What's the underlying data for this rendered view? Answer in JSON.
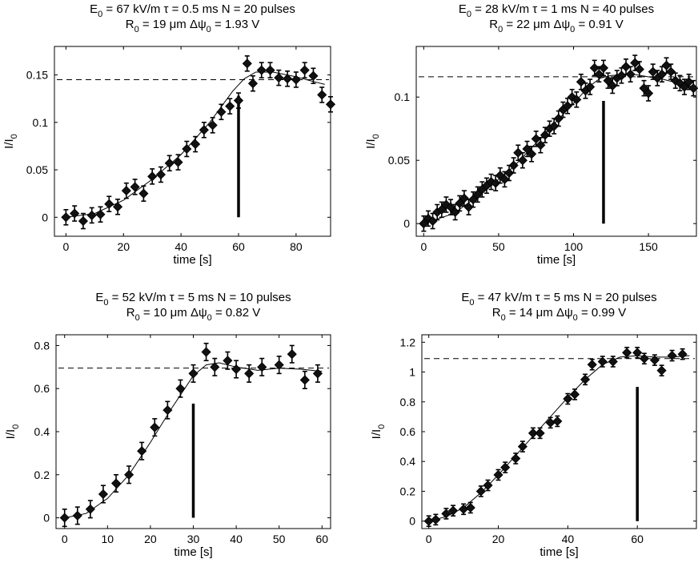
{
  "chart_data": [
    {
      "type": "scatter",
      "title_line1": [
        "E",
        "0",
        " = 67 kV/m    τ = 0.5 ms    N = 20 pulses"
      ],
      "title_line2": [
        "R",
        "0",
        " = 19 μm    Δψ",
        "0",
        " = 1.93 V"
      ],
      "xlabel": "time [s]",
      "ylabel": [
        "I/I",
        "0"
      ],
      "xlim": [
        -4,
        92
      ],
      "ylim": [
        -0.02,
        0.18
      ],
      "xticks": [
        0,
        20,
        40,
        60,
        80
      ],
      "xticklabels": [
        "0",
        "20",
        "40",
        "60",
        "80"
      ],
      "yticks": [
        0,
        0.05,
        0.1,
        0.15
      ],
      "yticklabels": [
        "0",
        "0.05",
        "0.1",
        "0.15"
      ],
      "plateau": 0.145,
      "pulse_marker": {
        "x": 60,
        "y_bottom": 0,
        "y_top": 0.128
      },
      "err": 0.008,
      "points": [
        [
          0,
          0
        ],
        [
          3,
          0.004
        ],
        [
          6,
          -0.004
        ],
        [
          9,
          0.002
        ],
        [
          12,
          0.003
        ],
        [
          15,
          0.014
        ],
        [
          18,
          0.011
        ],
        [
          21,
          0.028
        ],
        [
          24,
          0.032
        ],
        [
          27,
          0.025
        ],
        [
          30,
          0.043
        ],
        [
          33,
          0.045
        ],
        [
          36,
          0.057
        ],
        [
          39,
          0.058
        ],
        [
          42,
          0.072
        ],
        [
          45,
          0.077
        ],
        [
          48,
          0.092
        ],
        [
          51,
          0.097
        ],
        [
          54,
          0.111
        ],
        [
          57,
          0.117
        ],
        [
          60,
          0.123
        ],
        [
          63,
          0.162
        ],
        [
          65,
          0.141
        ],
        [
          68,
          0.155
        ],
        [
          71,
          0.155
        ],
        [
          74,
          0.147
        ],
        [
          77,
          0.146
        ],
        [
          80,
          0.145
        ],
        [
          83,
          0.155
        ],
        [
          86,
          0.149
        ],
        [
          89,
          0.129
        ],
        [
          92,
          0.119
        ]
      ],
      "fit": [
        [
          0,
          0
        ],
        [
          10,
          0.004
        ],
        [
          20,
          0.018
        ],
        [
          30,
          0.04
        ],
        [
          40,
          0.066
        ],
        [
          50,
          0.1
        ],
        [
          58,
          0.133
        ],
        [
          62,
          0.146
        ],
        [
          66,
          0.153
        ],
        [
          72,
          0.153
        ],
        [
          80,
          0.148
        ],
        [
          86,
          0.143
        ],
        [
          90,
          0.14
        ]
      ]
    },
    {
      "type": "scatter",
      "title_line1": [
        "E",
        "0",
        " = 28 kV/m    τ = 1 ms    N = 40 pulses"
      ],
      "title_line2": [
        "R",
        "0",
        " = 22 μm    Δψ",
        "0",
        " = 0.91 V"
      ],
      "xlabel": "time [s]",
      "ylabel": [
        "I/I",
        "0"
      ],
      "xlim": [
        -5,
        182
      ],
      "ylim": [
        -0.01,
        0.14
      ],
      "xticks": [
        0,
        50,
        100,
        150
      ],
      "xticklabels": [
        "0",
        "50",
        "100",
        "150"
      ],
      "yticks": [
        0,
        0.05,
        0.1
      ],
      "yticklabels": [
        "0",
        "0.05",
        "0.1"
      ],
      "plateau": 0.116,
      "pulse_marker": {
        "x": 120,
        "y_bottom": 0,
        "y_top": 0.097
      },
      "err": 0.006,
      "points": [
        [
          0,
          0
        ],
        [
          3,
          0.004
        ],
        [
          6,
          0.002
        ],
        [
          9,
          0.009
        ],
        [
          12,
          0.011
        ],
        [
          15,
          0.015
        ],
        [
          18,
          0.013
        ],
        [
          21,
          0.009
        ],
        [
          24,
          0.016
        ],
        [
          27,
          0.02
        ],
        [
          30,
          0.013
        ],
        [
          33,
          0.019
        ],
        [
          36,
          0.023
        ],
        [
          39,
          0.027
        ],
        [
          42,
          0.03
        ],
        [
          45,
          0.033
        ],
        [
          48,
          0.032
        ],
        [
          51,
          0.038
        ],
        [
          54,
          0.035
        ],
        [
          57,
          0.04
        ],
        [
          60,
          0.046
        ],
        [
          63,
          0.056
        ],
        [
          66,
          0.05
        ],
        [
          69,
          0.059
        ],
        [
          72,
          0.055
        ],
        [
          75,
          0.067
        ],
        [
          78,
          0.062
        ],
        [
          81,
          0.07
        ],
        [
          84,
          0.075
        ],
        [
          87,
          0.077
        ],
        [
          90,
          0.083
        ],
        [
          93,
          0.09
        ],
        [
          96,
          0.093
        ],
        [
          99,
          0.1
        ],
        [
          102,
          0.098
        ],
        [
          105,
          0.112
        ],
        [
          108,
          0.105
        ],
        [
          111,
          0.108
        ],
        [
          114,
          0.123
        ],
        [
          117,
          0.118
        ],
        [
          120,
          0.123
        ],
        [
          123,
          0.113
        ],
        [
          126,
          0.109
        ],
        [
          129,
          0.115
        ],
        [
          132,
          0.117
        ],
        [
          135,
          0.124
        ],
        [
          138,
          0.118
        ],
        [
          141,
          0.127
        ],
        [
          144,
          0.122
        ],
        [
          147,
          0.107
        ],
        [
          150,
          0.103
        ],
        [
          153,
          0.12
        ],
        [
          156,
          0.115
        ],
        [
          159,
          0.118
        ],
        [
          162,
          0.125
        ],
        [
          165,
          0.12
        ],
        [
          168,
          0.113
        ],
        [
          171,
          0.111
        ],
        [
          174,
          0.108
        ],
        [
          177,
          0.112
        ],
        [
          180,
          0.107
        ]
      ],
      "fit": [
        [
          0,
          0
        ],
        [
          20,
          0.008
        ],
        [
          40,
          0.025
        ],
        [
          60,
          0.045
        ],
        [
          80,
          0.07
        ],
        [
          100,
          0.095
        ],
        [
          110,
          0.108
        ],
        [
          118,
          0.115
        ],
        [
          125,
          0.117
        ],
        [
          140,
          0.118
        ],
        [
          160,
          0.114
        ],
        [
          180,
          0.108
        ]
      ]
    },
    {
      "type": "scatter",
      "title_line1": [
        "E",
        "0",
        " = 52 kV/m    τ = 5 ms    N = 10 pulses"
      ],
      "title_line2": [
        "R",
        "0",
        " = 10 μm    Δψ",
        "0",
        " = 0.82 V"
      ],
      "xlabel": "time [s]",
      "ylabel": [
        "I/I",
        "0"
      ],
      "xlim": [
        -2,
        62
      ],
      "ylim": [
        -0.05,
        0.85
      ],
      "xticks": [
        0,
        10,
        20,
        30,
        40,
        50,
        60
      ],
      "xticklabels": [
        "0",
        "10",
        "20",
        "30",
        "40",
        "50",
        "60"
      ],
      "yticks": [
        0,
        0.2,
        0.4,
        0.6,
        0.8
      ],
      "yticklabels": [
        "0",
        "0.2",
        "0.4",
        "0.6",
        "0.8"
      ],
      "plateau": 0.695,
      "pulse_marker": {
        "x": 30,
        "y_bottom": 0,
        "y_top": 0.53
      },
      "err": 0.04,
      "points": [
        [
          0,
          0
        ],
        [
          3,
          0.01
        ],
        [
          6,
          0.04
        ],
        [
          9,
          0.11
        ],
        [
          12,
          0.16
        ],
        [
          15,
          0.2
        ],
        [
          18,
          0.31
        ],
        [
          21,
          0.42
        ],
        [
          24,
          0.5
        ],
        [
          27,
          0.6
        ],
        [
          30,
          0.67
        ],
        [
          33,
          0.77
        ],
        [
          35,
          0.7
        ],
        [
          38,
          0.73
        ],
        [
          40,
          0.69
        ],
        [
          43,
          0.67
        ],
        [
          46,
          0.7
        ],
        [
          50,
          0.71
        ],
        [
          53,
          0.76
        ],
        [
          56,
          0.64
        ],
        [
          59,
          0.67
        ]
      ],
      "fit": [
        [
          0,
          0
        ],
        [
          5,
          0.02
        ],
        [
          10,
          0.09
        ],
        [
          15,
          0.2
        ],
        [
          20,
          0.35
        ],
        [
          25,
          0.51
        ],
        [
          30,
          0.66
        ],
        [
          33,
          0.71
        ],
        [
          36,
          0.72
        ],
        [
          40,
          0.7
        ],
        [
          45,
          0.685
        ],
        [
          50,
          0.695
        ],
        [
          55,
          0.69
        ],
        [
          60,
          0.68
        ]
      ]
    },
    {
      "type": "scatter",
      "title_line1": [
        "E",
        "0",
        " = 47 kV/m    τ = 5 ms    N = 20 pulses"
      ],
      "title_line2": [
        "R",
        "0",
        " = 14 μm    Δψ",
        "0",
        " = 0.99 V"
      ],
      "xlabel": "time [s]",
      "ylabel": [
        "I/I",
        "0"
      ],
      "xlim": [
        -2,
        77
      ],
      "ylim": [
        -0.05,
        1.25
      ],
      "xticks": [
        0,
        20,
        40,
        60
      ],
      "xticklabels": [
        "0",
        "20",
        "40",
        "60"
      ],
      "yticks": [
        0,
        0.2,
        0.4,
        0.6,
        0.8,
        1,
        1.2
      ],
      "yticklabels": [
        "0",
        "0.2",
        "0.4",
        "0.6",
        "0.8",
        "1",
        "1.2"
      ],
      "plateau": 1.09,
      "pulse_marker": {
        "x": 60,
        "y_bottom": 0,
        "y_top": 0.9
      },
      "err": 0.035,
      "points": [
        [
          0,
          0
        ],
        [
          2,
          0.01
        ],
        [
          5,
          0.05
        ],
        [
          7,
          0.07
        ],
        [
          10,
          0.08
        ],
        [
          12,
          0.09
        ],
        [
          15,
          0.2
        ],
        [
          17,
          0.24
        ],
        [
          20,
          0.31
        ],
        [
          22,
          0.36
        ],
        [
          25,
          0.42
        ],
        [
          27,
          0.5
        ],
        [
          30,
          0.59
        ],
        [
          32,
          0.59
        ],
        [
          35,
          0.66
        ],
        [
          37,
          0.67
        ],
        [
          40,
          0.82
        ],
        [
          42,
          0.85
        ],
        [
          45,
          0.95
        ],
        [
          47,
          1.05
        ],
        [
          50,
          1.07
        ],
        [
          53,
          1.07
        ],
        [
          57,
          1.13
        ],
        [
          60,
          1.13
        ],
        [
          62,
          1.09
        ],
        [
          65,
          1.08
        ],
        [
          67,
          1.01
        ],
        [
          70,
          1.11
        ],
        [
          73,
          1.12
        ]
      ],
      "fit": [
        [
          0,
          0
        ],
        [
          5,
          0.03
        ],
        [
          10,
          0.09
        ],
        [
          15,
          0.19
        ],
        [
          20,
          0.31
        ],
        [
          25,
          0.44
        ],
        [
          30,
          0.57
        ],
        [
          35,
          0.7
        ],
        [
          40,
          0.83
        ],
        [
          45,
          0.95
        ],
        [
          50,
          1.05
        ],
        [
          55,
          1.1
        ],
        [
          60,
          1.11
        ],
        [
          65,
          1.1
        ],
        [
          70,
          1.1
        ],
        [
          75,
          1.11
        ]
      ]
    }
  ]
}
